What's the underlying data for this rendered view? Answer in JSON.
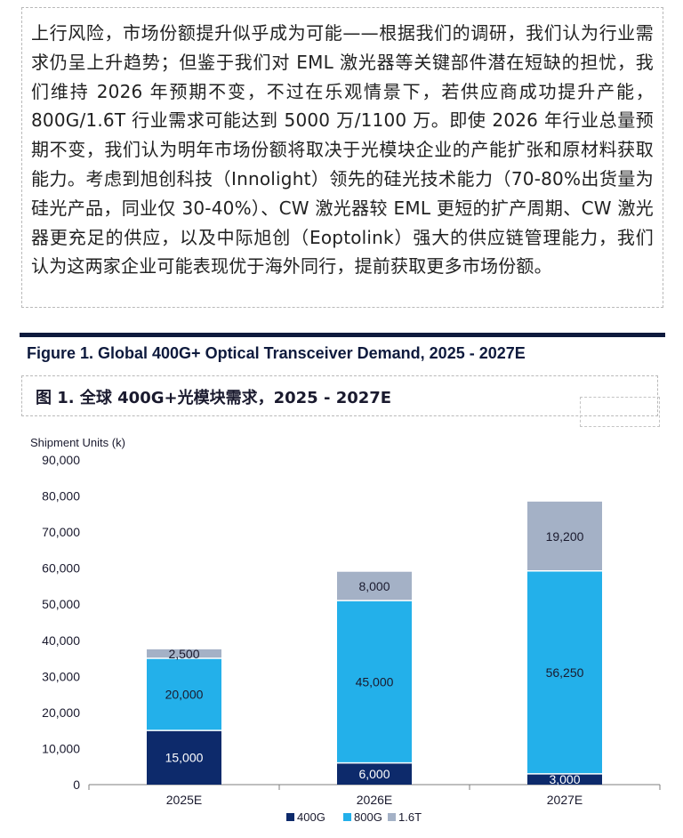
{
  "text_box": {
    "paragraph": "上行风险，市场份额提升似乎成为可能——根据我们的调研，我们认为行业需求仍呈上升趋势；但鉴于我们对 EML 激光器等关键部件潜在短缺的担忧，我们维持 2026 年预期不变，不过在乐观情景下，若供应商成功提升产能，800G/1.6T 行业需求可能达到 5000 万/1100 万。即使 2026 年行业总量预期不变，我们认为明年市场份额将取决于光模块企业的产能扩张和原材料获取能力。考虑到旭创科技（Innolight）领先的硅光技术能力（70-80%出货量为硅光产品，同业仅 30-40%）、CW 激光器较 EML 更短的扩产周期、CW 激光器更充足的供应，以及中际旭创（Eoptolink）强大的供应链管理能力，我们认为这两家企业可能表现优于海外同行，提前获取更多市场份额。"
  },
  "figure": {
    "title": "Figure 1. Global 400G+ Optical Transceiver Demand, 2025 - 2027E",
    "subtitle": "图 1. 全球 400G+光模块需求，2025 - 2027E"
  },
  "chart_data": {
    "type": "bar",
    "stacked": true,
    "title": "Global 400G+ Optical Transceiver Demand, 2025 - 2027E",
    "ylabel": "Shipment Units (k)",
    "xlabel": "",
    "ylim": [
      0,
      90000
    ],
    "yticks": [
      0,
      10000,
      20000,
      30000,
      40000,
      50000,
      60000,
      70000,
      80000,
      90000
    ],
    "ytick_labels": [
      "0",
      "10,000",
      "20,000",
      "30,000",
      "40,000",
      "50,000",
      "60,000",
      "70,000",
      "80,000",
      "90,000"
    ],
    "categories": [
      "2025E",
      "2026E",
      "2027E"
    ],
    "series": [
      {
        "name": "400G",
        "color": "#0d2a6b",
        "values": [
          15000,
          6000,
          3000
        ],
        "labels": [
          "15,000",
          "6,000",
          "3,000"
        ]
      },
      {
        "name": "800G",
        "color": "#23b0ea",
        "values": [
          20000,
          45000,
          56250
        ],
        "labels": [
          "20,000",
          "45,000",
          "56,250"
        ]
      },
      {
        "name": "1.6T",
        "color": "#a4b1c6",
        "values": [
          2500,
          8000,
          19200
        ],
        "labels": [
          "2,500",
          "8,000",
          "19,200"
        ]
      }
    ],
    "legend_position": "bottom-center"
  }
}
